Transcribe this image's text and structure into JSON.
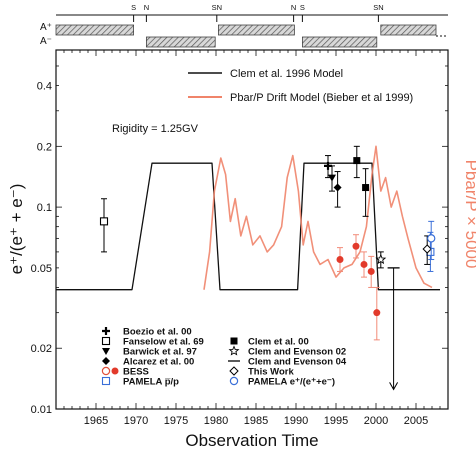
{
  "chart_data": {
    "type": "line",
    "title": "",
    "xlabel": "Observation Time",
    "ylabel": "e⁺/(e⁺ + e⁻)",
    "y2label": "Pbar/P × 5000",
    "annotation": "Rigidity = 1.25GV",
    "xlim": [
      1960,
      2009
    ],
    "ylim": [
      0.01,
      0.6
    ],
    "yscale": "log",
    "x_ticks": [
      1965,
      1970,
      1975,
      1980,
      1985,
      1990,
      1995,
      2000,
      2005
    ],
    "y_ticks": [
      {
        "v": 0.01,
        "label": "0.01"
      },
      {
        "v": 0.02,
        "label": "0.02"
      },
      {
        "v": 0.05,
        "label": "0.05"
      },
      {
        "v": 0.1,
        "label": "0.1"
      },
      {
        "v": 0.2,
        "label": "0.2"
      },
      {
        "v": 0.4,
        "label": "0.4"
      }
    ],
    "polarity": {
      "labels": [
        "A⁺",
        "A⁻"
      ],
      "sn_labels": [
        {
          "x": 1969.7,
          "t": "S"
        },
        {
          "x": 1971.3,
          "t": "N"
        },
        {
          "x": 1980.1,
          "t": "SN"
        },
        {
          "x": 1989.7,
          "t": "N"
        },
        {
          "x": 1990.8,
          "t": "S"
        },
        {
          "x": 2000.3,
          "t": "SN"
        }
      ],
      "a_plus": [
        [
          1960,
          1969.7
        ],
        [
          1980.3,
          1989.8
        ],
        [
          2000.6,
          2007.5
        ]
      ],
      "a_minus": [
        [
          1971.3,
          1979.9
        ],
        [
          1990.8,
          2000.1
        ]
      ]
    },
    "series": [
      {
        "name": "Clem et al. 1996 Model",
        "color": "#111111",
        "points": [
          [
            1960,
            0.039
          ],
          [
            1969.5,
            0.039
          ],
          [
            1972,
            0.165
          ],
          [
            1979.5,
            0.165
          ],
          [
            1980.5,
            0.039
          ],
          [
            1990.2,
            0.039
          ],
          [
            1991,
            0.165
          ],
          [
            1999.5,
            0.165
          ],
          [
            2000.3,
            0.039
          ],
          [
            2008,
            0.039
          ]
        ]
      },
      {
        "name": "Pbar/P Drift Model (Bieber et al 1999)",
        "color": "#f0846a",
        "points": [
          [
            1978.5,
            0.039
          ],
          [
            1979.2,
            0.06
          ],
          [
            1979.8,
            0.12
          ],
          [
            1980.6,
            0.175
          ],
          [
            1981.2,
            0.145
          ],
          [
            1981.8,
            0.085
          ],
          [
            1982.4,
            0.11
          ],
          [
            1983.1,
            0.072
          ],
          [
            1983.8,
            0.09
          ],
          [
            1984.6,
            0.065
          ],
          [
            1985.5,
            0.072
          ],
          [
            1986.4,
            0.06
          ],
          [
            1987.2,
            0.065
          ],
          [
            1988.2,
            0.08
          ],
          [
            1988.9,
            0.14
          ],
          [
            1989.6,
            0.18
          ],
          [
            1990.3,
            0.12
          ],
          [
            1990.9,
            0.065
          ],
          [
            1991.5,
            0.085
          ],
          [
            1992.2,
            0.06
          ],
          [
            1993,
            0.052
          ],
          [
            1994,
            0.055
          ],
          [
            1995,
            0.045
          ],
          [
            1996,
            0.05
          ],
          [
            1997,
            0.052
          ],
          [
            1998,
            0.06
          ],
          [
            1998.8,
            0.08
          ],
          [
            1999.5,
            0.145
          ],
          [
            2000,
            0.2
          ],
          [
            2000.6,
            0.12
          ],
          [
            2001.2,
            0.14
          ],
          [
            2001.9,
            0.1
          ],
          [
            2002.6,
            0.12
          ],
          [
            2003.3,
            0.09
          ],
          [
            2004,
            0.07
          ],
          [
            2005,
            0.05
          ],
          [
            2006,
            0.042
          ],
          [
            2007,
            0.04
          ]
        ]
      }
    ],
    "datasets": [
      {
        "name": "Boezio et al. 00",
        "marker": "plus",
        "color": "#000000",
        "points": [
          {
            "x": 1994,
            "y": 0.16,
            "lo": 0.14,
            "hi": 0.18
          }
        ]
      },
      {
        "name": "Fanselow et al. 69",
        "marker": "open-square",
        "color": "#000000",
        "points": [
          {
            "x": 1966,
            "y": 0.085,
            "lo": 0.06,
            "hi": 0.11
          }
        ]
      },
      {
        "name": "Barwick et al. 97",
        "marker": "triangle-down",
        "color": "#000000",
        "points": [
          {
            "x": 1994.5,
            "y": 0.14,
            "lo": 0.12,
            "hi": 0.16
          }
        ]
      },
      {
        "name": "Alcarez et al. 00",
        "marker": "diamond",
        "color": "#000000",
        "points": [
          {
            "x": 1995.2,
            "y": 0.125,
            "lo": 0.1,
            "hi": 0.15
          }
        ]
      },
      {
        "name": "BESS",
        "marker": "open-circle",
        "color": "#e0503a",
        "points": [
          {
            "x": 1995.5,
            "y": 0.055,
            "lo": 0.048,
            "hi": 0.063
          },
          {
            "x": 1997.5,
            "y": 0.064,
            "lo": 0.056,
            "hi": 0.073
          },
          {
            "x": 1998.5,
            "y": 0.052,
            "lo": 0.045,
            "hi": 0.06
          },
          {
            "x": 1999.4,
            "y": 0.048,
            "lo": 0.04,
            "hi": 0.057
          },
          {
            "x": 2000.1,
            "y": 0.03,
            "lo": 0.022,
            "hi": 0.04
          }
        ]
      },
      {
        "name": "PAMELA p̅/p",
        "marker": "open-square",
        "color": "#3a6fd8",
        "points": [
          {
            "x": 2006.8,
            "y": 0.06,
            "lo": 0.048,
            "hi": 0.075
          }
        ]
      },
      {
        "name": "Clem et al. 00",
        "marker": "square",
        "color": "#000000",
        "points": [
          {
            "x": 1997.6,
            "y": 0.17,
            "lo": 0.14,
            "hi": 0.2
          },
          {
            "x": 1998.7,
            "y": 0.125,
            "lo": 0.09,
            "hi": 0.155
          }
        ]
      },
      {
        "name": "Clem and Evenson 02",
        "marker": "star",
        "color": "#000000",
        "points": [
          {
            "x": 2000.6,
            "y": 0.055,
            "lo": 0.05,
            "hi": 0.06
          }
        ]
      },
      {
        "name": "Clem and Evenson 04",
        "marker": "dash",
        "color": "#000000",
        "points": [
          {
            "x": 2002.2,
            "y": 0.05,
            "lo": 0.0125,
            "hi": 0.05,
            "arrow": true
          }
        ]
      },
      {
        "name": "This Work",
        "marker": "open-diamond",
        "color": "#000000",
        "points": [
          {
            "x": 2006.4,
            "y": 0.062,
            "lo": 0.052,
            "hi": 0.072
          }
        ]
      },
      {
        "name": "PAMELA e⁺/(e⁺+e⁻)",
        "marker": "open-circle",
        "color": "#3a6fd8",
        "points": [
          {
            "x": 2006.9,
            "y": 0.07,
            "lo": 0.055,
            "hi": 0.085
          }
        ]
      }
    ]
  }
}
